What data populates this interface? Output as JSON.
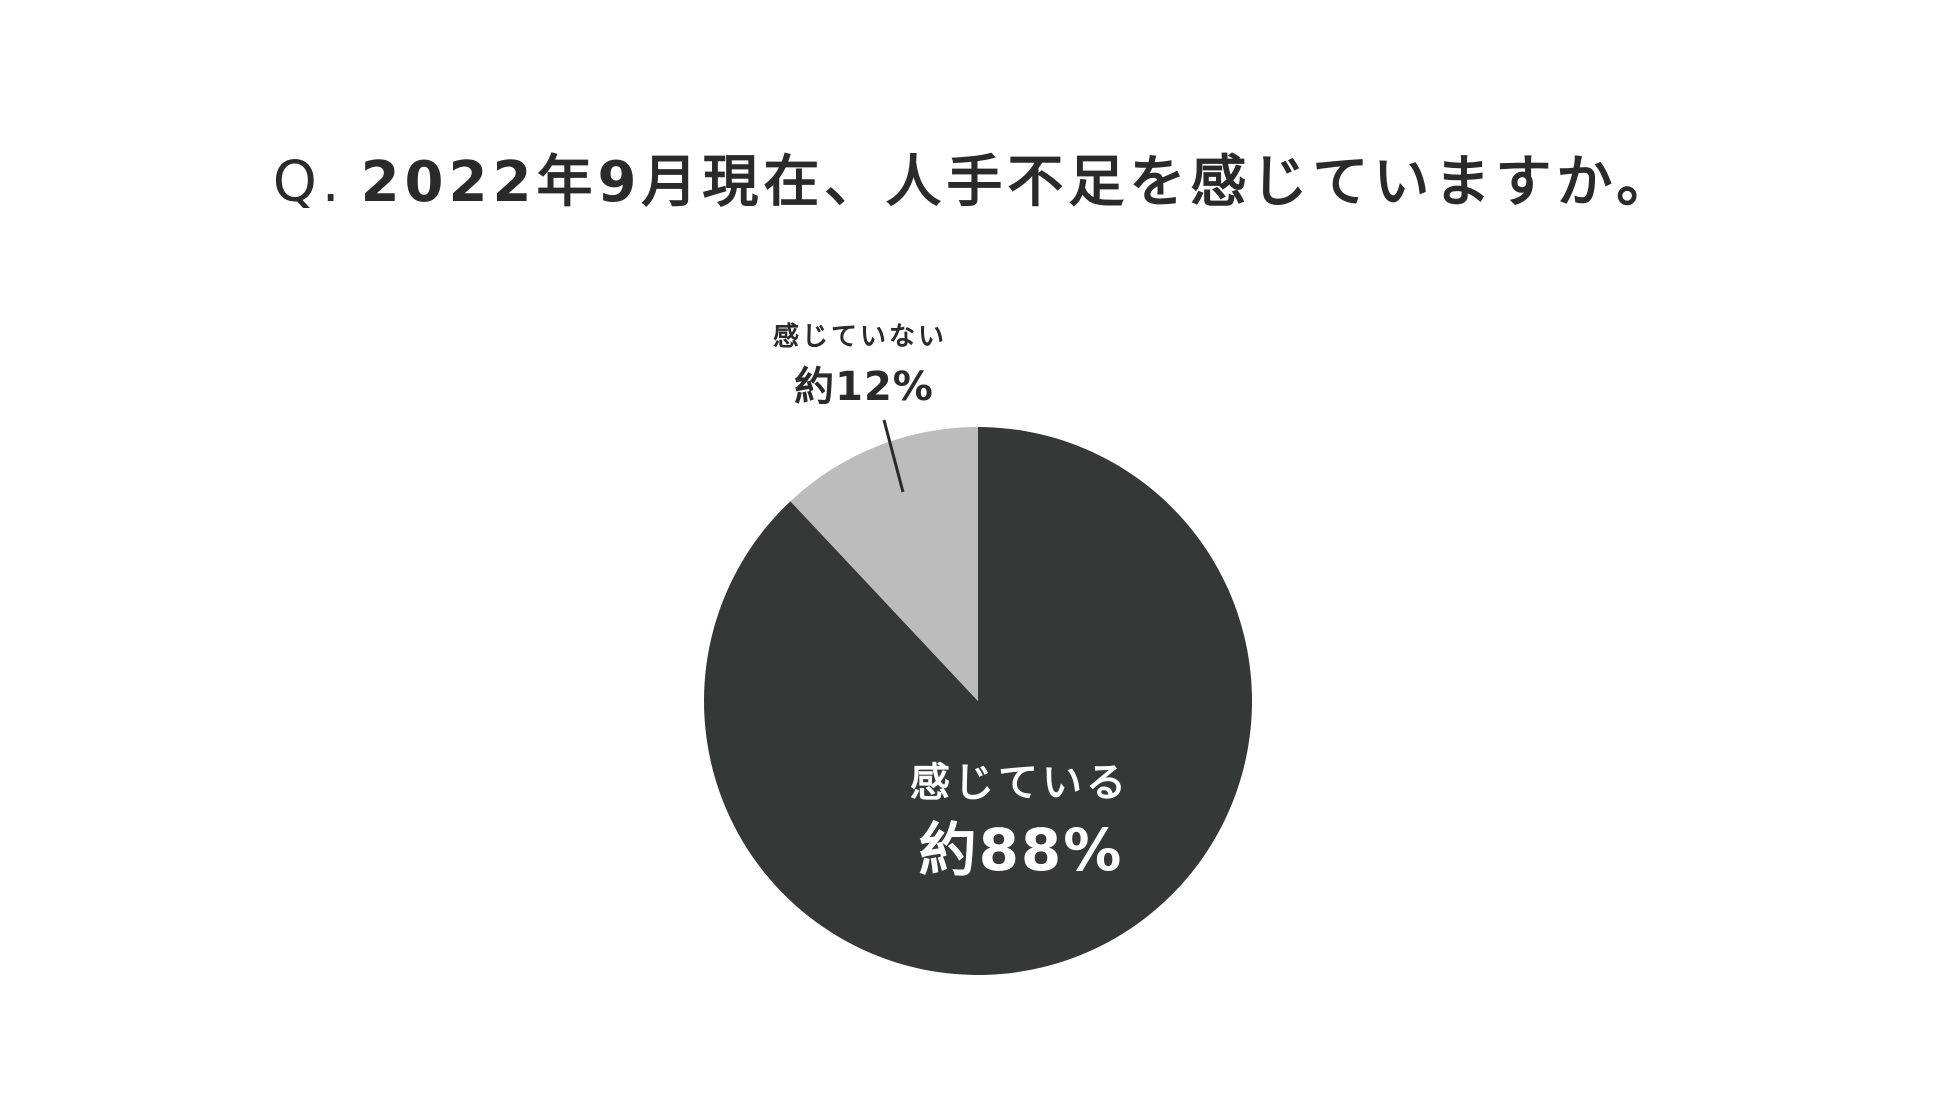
{
  "chart_data": {
    "type": "pie",
    "title_prefix": "Q.",
    "title": "2022年9月現在、人手不足を感じていますか。",
    "start_angle_deg": 0,
    "direction": "clockwise",
    "slices": [
      {
        "label": "感じている",
        "value_label": "約88%",
        "value": 88,
        "color": "#363737",
        "text_color": "#ffffff"
      },
      {
        "label": "感じていない",
        "value_label": "約12%",
        "value": 12,
        "color": "#bcbcbc",
        "text_color": "#2b2a2a"
      }
    ]
  }
}
